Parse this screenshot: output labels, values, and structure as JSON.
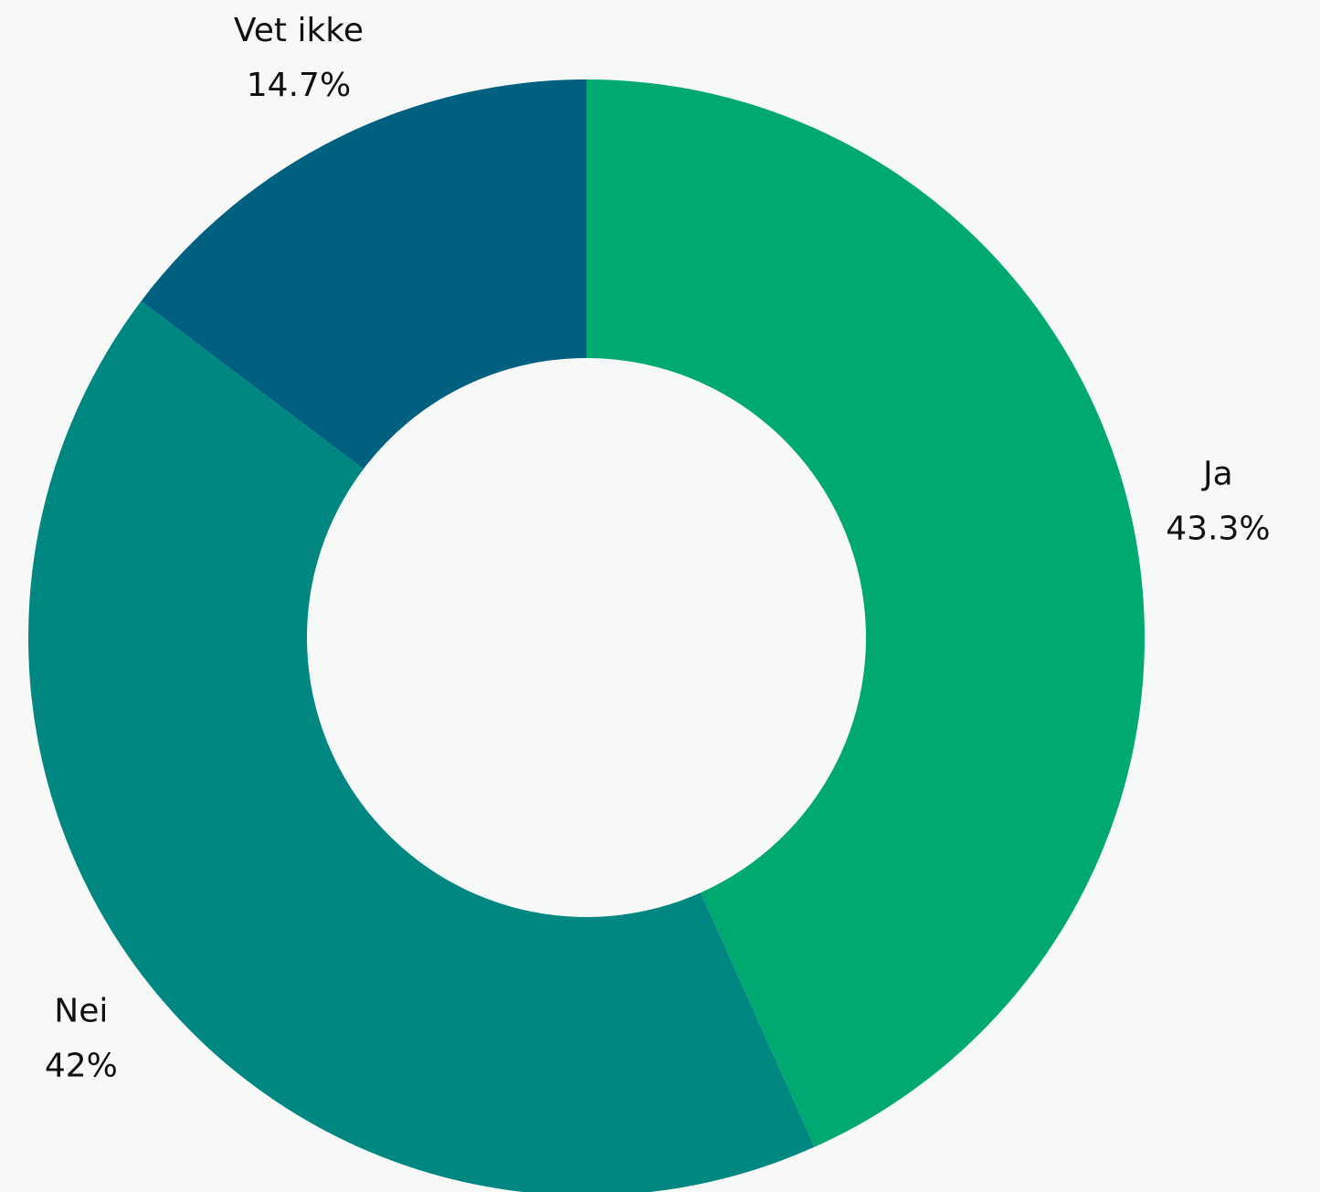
{
  "chart_data": {
    "type": "donut",
    "categories": [
      "Ja",
      "Nei",
      "Vet ikke"
    ],
    "values": [
      43.3,
      42,
      14.7
    ],
    "value_labels": [
      "43.3%",
      "42%",
      "14.7%"
    ],
    "colors": [
      "#00a972",
      "#008782",
      "#006080"
    ]
  }
}
